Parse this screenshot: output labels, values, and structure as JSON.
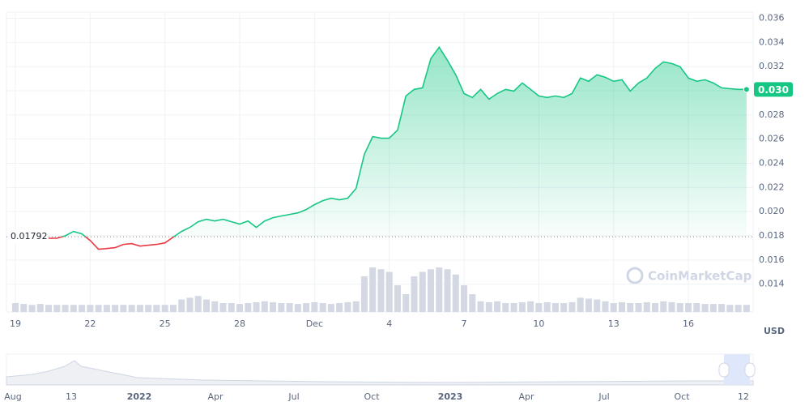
{
  "chart_data": {
    "type": "line",
    "categories": [
      "19",
      null,
      null,
      null,
      null,
      null,
      null,
      null,
      null,
      "22",
      null,
      null,
      null,
      null,
      null,
      null,
      null,
      null,
      "25",
      null,
      null,
      null,
      null,
      null,
      null,
      null,
      null,
      "28",
      null,
      null,
      null,
      null,
      null,
      null,
      null,
      null,
      "Dec",
      null,
      null,
      null,
      null,
      null,
      null,
      null,
      null,
      "4",
      null,
      null,
      null,
      null,
      null,
      null,
      null,
      null,
      "7",
      null,
      null,
      null,
      null,
      null,
      null,
      null,
      null,
      "10",
      null,
      null,
      null,
      null,
      null,
      null,
      null,
      null,
      "13",
      null,
      null,
      null,
      null,
      null,
      null,
      null,
      null,
      "16",
      null,
      null,
      null,
      null,
      null,
      null,
      null
    ],
    "series": [
      {
        "values": [
          null,
          null,
          null,
          null,
          0.0178,
          0.0178,
          0.018,
          0.01836,
          0.01816,
          0.01762,
          0.01689,
          0.01695,
          0.01702,
          0.01729,
          0.01736,
          0.01715,
          0.01722,
          0.01729,
          0.01742,
          0.01789,
          0.01836,
          0.0187,
          0.01917,
          0.01937,
          0.01923,
          0.01937,
          0.01917,
          0.01897,
          0.01923,
          0.0187,
          0.01923,
          0.0195,
          0.01964,
          0.01977,
          0.0199,
          0.02017,
          0.02058,
          0.02091,
          0.02111,
          0.02098,
          0.02111,
          0.02192,
          0.02474,
          0.02621,
          0.02608,
          0.02608,
          0.02675,
          0.02957,
          0.03011,
          0.03024,
          0.03266,
          0.0336,
          0.03252,
          0.03132,
          0.02977,
          0.02944,
          0.03011,
          0.0293,
          0.02977,
          0.03011,
          0.02997,
          0.03064,
          0.03011,
          0.02957,
          0.02944,
          0.02957,
          0.02944,
          0.02977,
          0.03105,
          0.03078,
          0.03132,
          0.03111,
          0.03078,
          0.03091,
          0.02997,
          0.03064,
          0.03105,
          0.03185,
          0.03239,
          0.03225,
          0.03199,
          0.03105,
          0.03078,
          0.03091,
          0.03064,
          0.03024,
          0.03017,
          0.03011,
          0.03011
        ],
        "up_color": "#16c784",
        "down_color": "#ea3943"
      }
    ],
    "volume": [
      10,
      9,
      8,
      9,
      8,
      8,
      8,
      8,
      8,
      8,
      8,
      8,
      8,
      8,
      8,
      8,
      8,
      8,
      8,
      8,
      14,
      16,
      18,
      14,
      12,
      10,
      10,
      9,
      10,
      11,
      12,
      11,
      10,
      10,
      9,
      10,
      11,
      10,
      9,
      10,
      11,
      12,
      40,
      50,
      48,
      45,
      30,
      20,
      40,
      45,
      48,
      50,
      48,
      42,
      30,
      20,
      12,
      11,
      12,
      10,
      10,
      11,
      12,
      10,
      11,
      10,
      10,
      11,
      16,
      15,
      14,
      12,
      10,
      11,
      10,
      10,
      11,
      10,
      12,
      11,
      10,
      10,
      10,
      9,
      9,
      9,
      8,
      8,
      8
    ],
    "baseline": 0.01792,
    "price_label": "0.030",
    "ylim": [
      0.0117,
      0.0365
    ],
    "yticks": [
      0.014,
      0.016,
      0.018,
      {
        "value": 0.02,
        "label": "0.020"
      },
      0.022,
      0.024,
      0.026,
      0.028,
      {
        "value": 0.03,
        "label": "0.030"
      },
      0.032,
      0.034,
      0.036
    ],
    "grid": true,
    "y_unit": "USD",
    "watermark": "CoinMarketCap",
    "navigator_labels": [
      "Aug",
      "13",
      "2022",
      "Apr",
      "Jul",
      "Oct",
      "2023",
      "Apr",
      "Jul",
      "Oct",
      "12"
    ]
  }
}
